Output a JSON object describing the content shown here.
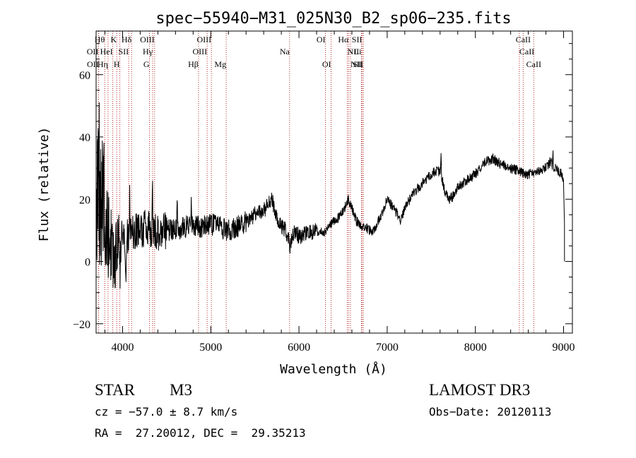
{
  "chart_data": {
    "type": "line",
    "title": "spec−55940−M31_025N30_B2_sp06−235.fits",
    "xlabel": "Wavelength (Å)",
    "ylabel": "Flux (relative)",
    "xlim": [
      3700,
      9100
    ],
    "ylim": [
      -23,
      74
    ],
    "xticks": [
      4000,
      5000,
      6000,
      7000,
      8000,
      9000
    ],
    "xtick_labels": [
      "4000",
      "5000",
      "6000",
      "7000",
      "8000",
      "9000"
    ],
    "yticks": [
      -20,
      0,
      20,
      40,
      60
    ],
    "ytick_labels": [
      "−20",
      "0",
      "20",
      "40",
      "60"
    ],
    "continuum": [
      [
        3700,
        10
      ],
      [
        3720,
        30
      ],
      [
        3760,
        20
      ],
      [
        3800,
        12
      ],
      [
        3850,
        7
      ],
      [
        3900,
        4
      ],
      [
        3950,
        6
      ],
      [
        4000,
        6
      ],
      [
        4050,
        8
      ],
      [
        4100,
        10
      ],
      [
        4200,
        10
      ],
      [
        4300,
        11
      ],
      [
        4400,
        9
      ],
      [
        4500,
        10
      ],
      [
        4600,
        10
      ],
      [
        4700,
        11
      ],
      [
        4800,
        12
      ],
      [
        4900,
        11
      ],
      [
        5000,
        12
      ],
      [
        5100,
        11
      ],
      [
        5200,
        10
      ],
      [
        5300,
        11
      ],
      [
        5400,
        13
      ],
      [
        5500,
        15
      ],
      [
        5600,
        16
      ],
      [
        5650,
        19
      ],
      [
        5700,
        20
      ],
      [
        5730,
        15
      ],
      [
        5800,
        11
      ],
      [
        5850,
        10
      ],
      [
        5900,
        5
      ],
      [
        5950,
        10
      ],
      [
        6000,
        8
      ],
      [
        6100,
        9
      ],
      [
        6200,
        10
      ],
      [
        6300,
        9
      ],
      [
        6350,
        12
      ],
      [
        6400,
        13
      ],
      [
        6450,
        14
      ],
      [
        6500,
        16
      ],
      [
        6560,
        20
      ],
      [
        6600,
        17
      ],
      [
        6650,
        13
      ],
      [
        6700,
        12
      ],
      [
        6750,
        11
      ],
      [
        6800,
        10
      ],
      [
        6850,
        10
      ],
      [
        6900,
        13
      ],
      [
        6950,
        16
      ],
      [
        7000,
        20
      ],
      [
        7100,
        16
      ],
      [
        7150,
        13
      ],
      [
        7200,
        17
      ],
      [
        7300,
        22
      ],
      [
        7400,
        25
      ],
      [
        7500,
        28
      ],
      [
        7560,
        29
      ],
      [
        7600,
        29
      ],
      [
        7650,
        23
      ],
      [
        7700,
        20
      ],
      [
        7750,
        21
      ],
      [
        7800,
        24
      ],
      [
        7900,
        26
      ],
      [
        8000,
        28
      ],
      [
        8050,
        30
      ],
      [
        8100,
        32
      ],
      [
        8200,
        33
      ],
      [
        8300,
        31
      ],
      [
        8400,
        30
      ],
      [
        8500,
        29
      ],
      [
        8600,
        28
      ],
      [
        8700,
        29
      ],
      [
        8800,
        30
      ],
      [
        8850,
        32
      ],
      [
        8900,
        30
      ],
      [
        8950,
        29
      ],
      [
        9000,
        27
      ],
      [
        9010,
        12
      ],
      [
        9010,
        0
      ]
    ],
    "features": [
      {
        "x": 3865,
        "y": 8,
        "w": 14
      },
      {
        "x": 3915,
        "y": -6,
        "w": 12
      },
      {
        "x": 3975,
        "y": -4,
        "w": 10
      },
      {
        "x": 4040,
        "y": -3,
        "w": 12
      },
      {
        "x": 4080,
        "y": 22,
        "w": 8
      },
      {
        "x": 4250,
        "y": 21,
        "w": 8
      },
      {
        "x": 4340,
        "y": 22,
        "w": 8
      },
      {
        "x": 4420,
        "y": 2,
        "w": 8
      },
      {
        "x": 4620,
        "y": 23,
        "w": 8
      },
      {
        "x": 4780,
        "y": 21,
        "w": 8
      },
      {
        "x": 7610,
        "y": 36,
        "w": 7
      },
      {
        "x": 8880,
        "y": 35,
        "w": 8
      }
    ],
    "lines": [
      {
        "label": "Hθ",
        "x": 3798,
        "row": 0,
        "align": "end"
      },
      {
        "label": "OII",
        "x": 3727,
        "row": 1,
        "align": "end"
      },
      {
        "label": "OII",
        "x": 3729,
        "row": 2,
        "align": "end"
      },
      {
        "label": "K",
        "x": 3934,
        "row": 0,
        "align": "end"
      },
      {
        "label": "Hη",
        "x": 3835,
        "row": 2,
        "align": "end"
      },
      {
        "label": "HeI",
        "x": 3889,
        "row": 1,
        "align": "end"
      },
      {
        "label": "SII",
        "x": 4070,
        "row": 1,
        "align": "end"
      },
      {
        "label": "H",
        "x": 3969,
        "row": 2,
        "align": "end"
      },
      {
        "label": "Hδ",
        "x": 4102,
        "row": 0,
        "align": "end"
      },
      {
        "label": "OIII",
        "x": 4363,
        "row": 0,
        "align": "end"
      },
      {
        "label": "Hγ",
        "x": 4341,
        "row": 1,
        "align": "end"
      },
      {
        "label": "G",
        "x": 4305,
        "row": 2,
        "align": "end"
      },
      {
        "label": "Hβ",
        "x": 4861,
        "row": 2,
        "align": "end"
      },
      {
        "label": "OIII",
        "x": 5007,
        "row": 0,
        "align": "end"
      },
      {
        "label": "OIII",
        "x": 4959,
        "row": 1,
        "align": "end"
      },
      {
        "label": "Mg",
        "x": 5175,
        "row": 2,
        "align": "end"
      },
      {
        "label": "Na",
        "x": 5894,
        "row": 1,
        "align": "end"
      },
      {
        "label": "OI",
        "x": 6300,
        "row": 0,
        "align": "end"
      },
      {
        "label": "OI",
        "x": 6364,
        "row": 2,
        "align": "end"
      },
      {
        "label": "Hα",
        "x": 6563,
        "row": 0,
        "align": "end"
      },
      {
        "label": "NII",
        "x": 6548,
        "row": 1,
        "align": "start"
      },
      {
        "label": "NII",
        "x": 6584,
        "row": 2,
        "align": "start"
      },
      {
        "label": "SII",
        "x": 6716,
        "row": 0,
        "align": "end"
      },
      {
        "label": "Li",
        "x": 6708,
        "row": 1,
        "align": "end"
      },
      {
        "label": "SII",
        "x": 6731,
        "row": 2,
        "align": "end"
      },
      {
        "label": "CaII",
        "x": 8542,
        "row": 0,
        "align": "middle"
      },
      {
        "label": "CaII",
        "x": 8498,
        "row": 1,
        "align": "start"
      },
      {
        "label": "CaII",
        "x": 8662,
        "row": 2,
        "align": "middle"
      }
    ],
    "line_color": "#000000",
    "marker_color": "#b22222"
  },
  "info": {
    "class_label": "STAR",
    "subclass": "M3",
    "survey": "LAMOST DR3",
    "cz": "cz = −57.0 ± 8.7 km/s",
    "obs_date": "Obs−Date: 20120113",
    "radec": "RA =  27.20012, DEC =  29.35213"
  }
}
